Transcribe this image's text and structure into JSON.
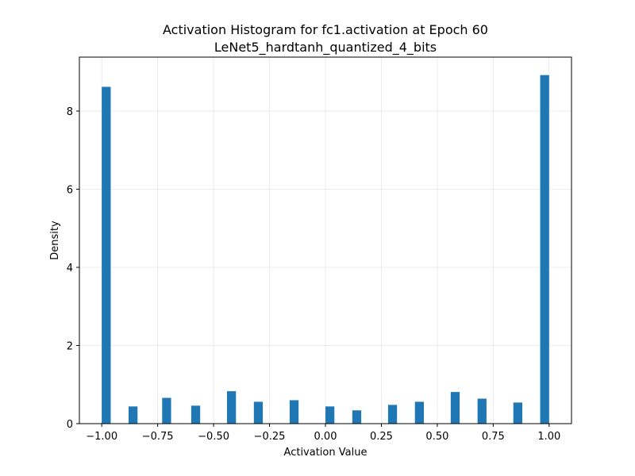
{
  "chart_data": {
    "type": "bar",
    "title": "Activation Histogram for fc1.activation at Epoch 60",
    "subtitle": "LeNet5_hardtanh_quantized_4_bits",
    "xlabel": "Activation Value",
    "ylabel": "Density",
    "xlim": [
      -1.1,
      1.1
    ],
    "ylim": [
      0,
      9.38
    ],
    "grid": true,
    "bar_width": 0.04,
    "color": "#1f77b4",
    "xticks": [
      -1.0,
      -0.75,
      -0.5,
      -0.25,
      0.0,
      0.25,
      0.5,
      0.75,
      1.0
    ],
    "xtick_labels": [
      "−1.00",
      "−0.75",
      "−0.50",
      "−0.25",
      "0.00",
      "0.25",
      "0.50",
      "0.75",
      "1.00"
    ],
    "yticks": [
      0,
      2,
      4,
      6,
      8
    ],
    "ytick_labels": [
      "0",
      "2",
      "4",
      "6",
      "8"
    ],
    "bins": [
      {
        "x": -0.98,
        "y": 8.62
      },
      {
        "x": -0.86,
        "y": 0.44
      },
      {
        "x": -0.71,
        "y": 0.66
      },
      {
        "x": -0.58,
        "y": 0.46
      },
      {
        "x": -0.42,
        "y": 0.83
      },
      {
        "x": -0.3,
        "y": 0.56
      },
      {
        "x": -0.14,
        "y": 0.6
      },
      {
        "x": 0.02,
        "y": 0.44
      },
      {
        "x": 0.14,
        "y": 0.34
      },
      {
        "x": 0.3,
        "y": 0.48
      },
      {
        "x": 0.42,
        "y": 0.56
      },
      {
        "x": 0.58,
        "y": 0.81
      },
      {
        "x": 0.7,
        "y": 0.64
      },
      {
        "x": 0.86,
        "y": 0.54
      },
      {
        "x": 0.98,
        "y": 8.92
      }
    ]
  }
}
